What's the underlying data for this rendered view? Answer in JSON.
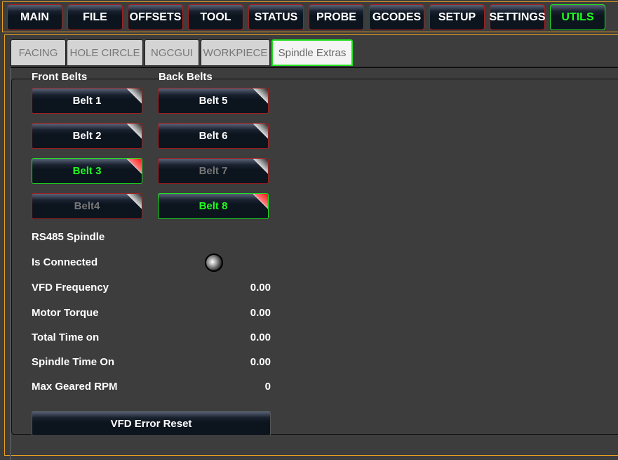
{
  "nav": {
    "items": [
      "MAIN",
      "FILE",
      "OFFSETS",
      "TOOL",
      "STATUS",
      "PROBE",
      "GCODES",
      "SETUP",
      "SETTINGS",
      "UTILS"
    ],
    "active": "UTILS"
  },
  "tabs": {
    "items": [
      "FACING",
      "HOLE CIRCLE",
      "NGCGUI",
      "WORKPIECE",
      "Spindle Extras"
    ],
    "active": "Spindle Extras"
  },
  "belts": {
    "front_title": "Front Belts",
    "back_title": "Back Belts",
    "front": [
      {
        "label": "Belt 1",
        "state": "normal"
      },
      {
        "label": "Belt 2",
        "state": "normal"
      },
      {
        "label": "Belt 3",
        "state": "active"
      },
      {
        "label": "Belt4",
        "state": "disabled"
      }
    ],
    "back": [
      {
        "label": "Belt 5",
        "state": "normal"
      },
      {
        "label": "Belt 6",
        "state": "normal"
      },
      {
        "label": "Belt 7",
        "state": "disabled"
      },
      {
        "label": "Belt 8",
        "state": "active"
      }
    ]
  },
  "rs485": {
    "title": "RS485 Spindle",
    "connected_label": "Is Connected",
    "connected": false,
    "rows": [
      {
        "label": "VFD Frequency",
        "value": "0.00"
      },
      {
        "label": "Motor Torque",
        "value": "0.00"
      },
      {
        "label": "Total Time on",
        "value": "0.00"
      },
      {
        "label": "Spindle Time On",
        "value": "0.00"
      },
      {
        "label": "Max Geared RPM",
        "value": "0"
      }
    ],
    "reset_label": "VFD Error Reset"
  },
  "colors": {
    "accent_green": "#20ff20",
    "border_orange": "#e8a020",
    "border_red": "#a02020"
  }
}
